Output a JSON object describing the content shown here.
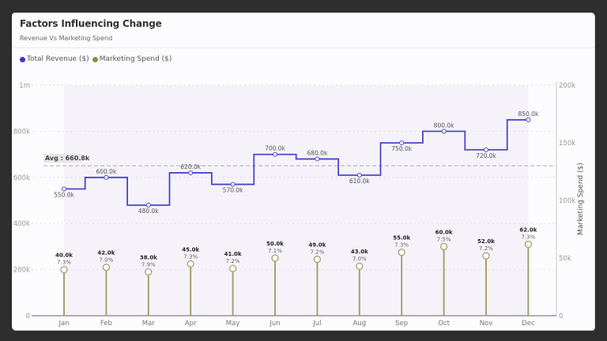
{
  "card": {
    "title": "Factors Influencing Change",
    "subtitle": "Revenue Vs Marketing Spend"
  },
  "legend": [
    {
      "label": "Total Revenue ($)",
      "color": "#3b35c9"
    },
    {
      "label": "Marketing Spend ($)",
      "color": "#8f8a45"
    }
  ],
  "avg_label": "Avg : 660.8k",
  "left_axis_ticks": [
    "0",
    "200k",
    "400k",
    "600k",
    "800k",
    "1m"
  ],
  "right_axis_ticks": [
    "0",
    "50k",
    "100k",
    "150k",
    "200k"
  ],
  "right_axis_title": "Marketing Spend ($)",
  "chart_data": {
    "type": "line",
    "title": "Factors Influencing Change",
    "subtitle": "Revenue Vs Marketing Spend",
    "categories": [
      "Jan",
      "Feb",
      "Mar",
      "Apr",
      "May",
      "Jun",
      "Jul",
      "Aug",
      "Sep",
      "Oct",
      "Nov",
      "Dec"
    ],
    "series": [
      {
        "name": "Total Revenue ($)",
        "type": "step-line",
        "axis": "left",
        "color": "#4b44cc",
        "values": [
          550000,
          600000,
          480000,
          620000,
          570000,
          700000,
          680000,
          610000,
          750000,
          800000,
          720000,
          850000
        ],
        "labels": [
          "550.0k",
          "600.0k",
          "480.0k",
          "620.0k",
          "570.0k",
          "700.0k",
          "680.0k",
          "610.0k",
          "750.0k",
          "800.0k",
          "720.0k",
          "850.0k"
        ]
      },
      {
        "name": "Marketing Spend ($)",
        "type": "lollipop",
        "axis": "right",
        "color": "#a7a070",
        "values": [
          40000,
          42000,
          38000,
          45000,
          41000,
          50000,
          49000,
          43000,
          55000,
          60000,
          52000,
          62000
        ],
        "labels": [
          "40.0k",
          "42.0k",
          "38.0k",
          "45.0k",
          "41.0k",
          "50.0k",
          "49.0k",
          "43.0k",
          "55.0k",
          "60.0k",
          "52.0k",
          "62.0k"
        ],
        "pct_of_revenue": [
          "7.3%",
          "7.0%",
          "7.9%",
          "7.3%",
          "7.2%",
          "7.1%",
          "7.2%",
          "7.0%",
          "7.3%",
          "7.5%",
          "7.2%",
          "7.3%"
        ]
      }
    ],
    "reference_lines": [
      {
        "label": "Avg : 660.8k",
        "value": 660800,
        "axis": "left",
        "style": "dashed"
      }
    ],
    "xlabel": "",
    "ylabel": "",
    "y2label": "Marketing Spend ($)",
    "ylim": [
      0,
      1000000
    ],
    "y2lim": [
      0,
      200000
    ],
    "grid": true,
    "legend_position": "top-left"
  }
}
